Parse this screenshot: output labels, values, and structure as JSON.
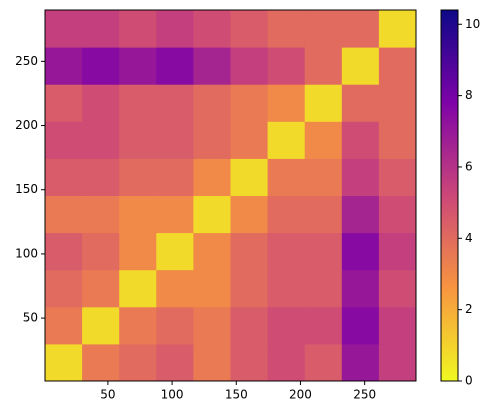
{
  "chart_data": {
    "type": "heatmap",
    "colormap": "plasma_r",
    "xlim": [
      1,
      290
    ],
    "ylim": [
      1,
      290
    ],
    "xticks": [
      50,
      100,
      150,
      200,
      250
    ],
    "yticks": [
      50,
      100,
      150,
      200,
      250
    ],
    "zlim": [
      0,
      10.4
    ],
    "zticks": [
      0,
      2,
      4,
      6,
      8,
      10
    ],
    "z": [
      [
        0.8,
        3.5,
        4,
        4.5,
        3.5,
        4.5,
        5,
        4.5,
        7,
        5.5
      ],
      [
        3.5,
        0.8,
        3.5,
        4,
        3.5,
        4.5,
        5,
        5,
        7.5,
        5.5
      ],
      [
        4,
        3.5,
        0.8,
        3,
        3,
        4,
        4.5,
        4.5,
        7,
        5
      ],
      [
        4.5,
        4,
        3,
        0.8,
        3,
        4,
        4.5,
        4.5,
        7.5,
        5.5
      ],
      [
        3.5,
        3.5,
        3,
        3,
        0.8,
        3,
        4,
        4,
        6.5,
        5
      ],
      [
        4.5,
        4.5,
        4,
        4,
        3,
        0.8,
        3.5,
        3.5,
        5.5,
        4.5
      ],
      [
        5,
        5,
        4.5,
        4.5,
        4,
        3.5,
        0.8,
        3,
        5,
        4
      ],
      [
        4.5,
        5,
        4.5,
        4.5,
        4,
        3.5,
        3,
        0.8,
        4,
        4
      ],
      [
        7,
        7.5,
        7,
        7.5,
        6.5,
        5.5,
        5,
        4,
        0.8,
        4
      ],
      [
        5.5,
        5.5,
        5,
        5.5,
        5,
        4.5,
        4,
        4,
        4,
        0.8
      ]
    ]
  }
}
